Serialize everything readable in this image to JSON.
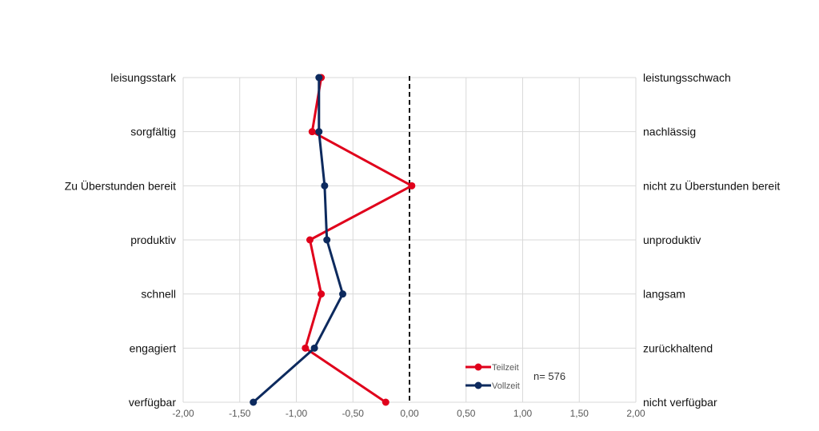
{
  "chart_data": {
    "type": "line",
    "orientation": "horizontal-profile",
    "title": "",
    "xlim": [
      -2.0,
      2.0
    ],
    "x_ticks": [
      "-2,00",
      "-1,50",
      "-1,00",
      "-0,50",
      "0,00",
      "0,50",
      "1,00",
      "1,50",
      "2,00"
    ],
    "x_tick_values": [
      -2.0,
      -1.5,
      -1.0,
      -0.5,
      0.0,
      0.5,
      1.0,
      1.5,
      2.0
    ],
    "left_labels": [
      "leisungsstark",
      "sorgfältig",
      "Zu Überstunden bereit",
      "produktiv",
      "schnell",
      "engagiert",
      "verfügbar"
    ],
    "right_labels": [
      "leistungsschwach",
      "nachlässig",
      "nicht zu Überstunden bereit",
      "unproduktiv",
      "langsam",
      "zurückhaltend",
      "nicht verfügbar"
    ],
    "reference_line": 0.0,
    "grid": true,
    "legend": {
      "placement": "bottom-right"
    },
    "annotation": "n= 576",
    "series": [
      {
        "name": "Teilzeit",
        "color": "#e0001b",
        "values": [
          -0.78,
          -0.86,
          0.02,
          -0.88,
          -0.78,
          -0.92,
          -0.21
        ]
      },
      {
        "name": "Vollzeit",
        "color": "#0d2a5e",
        "values": [
          -0.8,
          -0.8,
          -0.75,
          -0.73,
          -0.59,
          -0.84,
          -1.38
        ]
      }
    ]
  }
}
